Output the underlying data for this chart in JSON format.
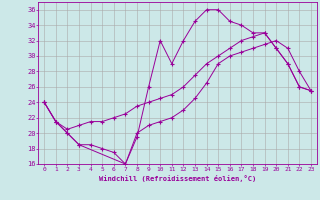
{
  "xlabel": "Windchill (Refroidissement éolien,°C)",
  "bg_color": "#cce8e8",
  "grid_color": "#aaaaaa",
  "line_color": "#990099",
  "xlim": [
    -0.5,
    23.5
  ],
  "ylim": [
    16,
    37
  ],
  "yticks": [
    16,
    18,
    20,
    22,
    24,
    26,
    28,
    30,
    32,
    34,
    36
  ],
  "xticks": [
    0,
    1,
    2,
    3,
    4,
    5,
    6,
    7,
    8,
    9,
    10,
    11,
    12,
    13,
    14,
    15,
    16,
    17,
    18,
    19,
    20,
    21,
    22,
    23
  ],
  "line1_x": [
    0,
    1,
    2,
    3,
    4,
    5,
    6,
    7,
    8,
    9,
    10,
    11,
    12,
    13,
    14,
    15,
    16,
    17,
    18,
    19,
    20,
    21,
    22,
    23
  ],
  "line1_y": [
    24,
    21.5,
    20,
    18.5,
    18.5,
    18,
    17.5,
    16,
    19.5,
    26,
    32,
    29,
    32,
    34.5,
    36,
    36,
    34.5,
    34,
    33,
    33,
    31,
    29,
    26,
    25.5
  ],
  "line2_x": [
    0,
    1,
    2,
    3,
    4,
    5,
    6,
    7,
    8,
    9,
    10,
    11,
    12,
    13,
    14,
    15,
    16,
    17,
    18,
    19,
    20,
    21,
    22,
    23
  ],
  "line2_y": [
    24,
    21.5,
    20.5,
    21,
    21.5,
    21.5,
    22,
    22.5,
    23.5,
    24,
    24.5,
    25,
    26,
    27.5,
    29,
    30,
    31,
    32,
    32.5,
    33,
    31,
    29,
    26,
    25.5
  ],
  "line3_x": [
    0,
    1,
    2,
    3,
    7,
    8,
    9,
    10,
    11,
    12,
    13,
    14,
    15,
    16,
    17,
    18,
    19,
    20,
    21,
    22,
    23
  ],
  "line3_y": [
    24,
    21.5,
    20,
    18.5,
    16,
    20,
    21,
    21.5,
    22,
    23,
    24.5,
    26.5,
    29,
    30,
    30.5,
    31,
    31.5,
    32,
    31,
    28,
    25.5
  ]
}
